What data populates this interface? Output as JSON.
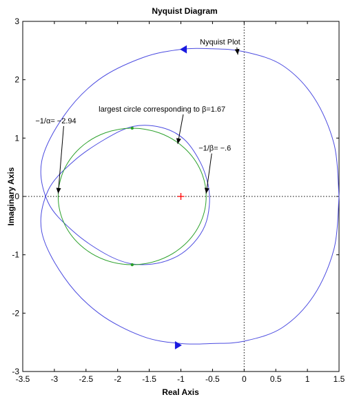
{
  "chart_data": {
    "type": "line",
    "title": "Nyquist Diagram",
    "xlabel": "Real Axis",
    "ylabel": "Imaginary Axis",
    "xlim": [
      -3.5,
      1.5
    ],
    "ylim": [
      -3,
      3
    ],
    "xticks": [
      -3.5,
      -3,
      -2.5,
      -2,
      -1.5,
      -1,
      -0.5,
      0,
      0.5,
      1,
      1.5
    ],
    "xtick_labels": [
      "-3.5",
      "-3",
      "-2.5",
      "-2",
      "-1.5",
      "-1",
      "-0.5",
      "0",
      "0.5",
      "1",
      "1.5"
    ],
    "yticks": [
      3,
      2,
      1,
      0,
      -1,
      -2,
      -3
    ],
    "ytick_labels": [
      "3",
      "2",
      "1",
      "0",
      "-1",
      "-2",
      "-3"
    ],
    "grid": false,
    "reference_lines": [
      {
        "orientation": "horizontal",
        "value": 0,
        "style": "dotted"
      },
      {
        "orientation": "vertical",
        "value": 0,
        "style": "dotted"
      }
    ],
    "critical_point": {
      "x": -1,
      "y": 0,
      "marker": "plus",
      "color": "#ff0000"
    },
    "series": [
      {
        "color": "#4a4ae0",
        "kind": "nyquist",
        "points": [
          [
            1.5,
            0
          ],
          [
            1.42,
            0.9
          ],
          [
            1.1,
            1.7
          ],
          [
            0.6,
            2.25
          ],
          [
            0,
            2.48
          ],
          [
            -0.5,
            2.53
          ],
          [
            -1.0,
            2.52
          ],
          [
            -1.6,
            2.38
          ],
          [
            -2.3,
            2.0
          ],
          [
            -2.85,
            1.38
          ],
          [
            -3.2,
            0.6
          ],
          [
            -3.1,
            -0.1
          ],
          [
            -2.7,
            -0.6
          ],
          [
            -2.2,
            -0.98
          ],
          [
            -1.8,
            -1.15
          ],
          [
            -1.4,
            -1.15
          ],
          [
            -1.05,
            -1.02
          ],
          [
            -0.8,
            -0.8
          ],
          [
            -0.62,
            -0.5
          ],
          [
            -0.55,
            -0.15
          ],
          [
            -0.57,
            0.2
          ],
          [
            -0.7,
            0.6
          ],
          [
            -0.95,
            0.98
          ],
          [
            -1.3,
            1.18
          ],
          [
            -1.75,
            1.2
          ],
          [
            -2.2,
            0.98
          ],
          [
            -2.7,
            0.6
          ],
          [
            -3.1,
            0.1
          ],
          [
            -3.2,
            -0.6
          ],
          [
            -2.85,
            -1.38
          ],
          [
            -2.3,
            -2.0
          ],
          [
            -1.6,
            -2.4
          ],
          [
            -1.0,
            -2.52
          ],
          [
            -0.5,
            -2.52
          ],
          [
            0,
            -2.48
          ],
          [
            0.6,
            -2.25
          ],
          [
            1.1,
            -1.7
          ],
          [
            1.42,
            -0.9
          ],
          [
            1.5,
            0
          ]
        ],
        "arrows": [
          {
            "x": -0.95,
            "y": 2.52,
            "direction": "left"
          },
          {
            "x": -1.05,
            "y": -2.55,
            "direction": "right"
          }
        ]
      },
      {
        "color": "#2aa02a",
        "kind": "circle",
        "center": [
          -1.77,
          0
        ],
        "radius": 1.17,
        "markers": [
          [
            -1.77,
            1.17
          ],
          [
            -1.77,
            -1.17
          ]
        ]
      }
    ],
    "annotations": [
      {
        "text": "Nyquist Plot",
        "x": -0.7,
        "y": 2.65,
        "arrow_to": [
          -0.1,
          2.43
        ]
      },
      {
        "text": "largest circle corresponding to β=1.67",
        "x": -2.3,
        "y": 1.5,
        "arrow_to": [
          -1.05,
          0.9
        ]
      },
      {
        "text": "−1/α= −2.94",
        "x": -3.3,
        "y": 1.3,
        "arrow_to": [
          -2.94,
          0.05
        ]
      },
      {
        "text": "−1/β= −.6",
        "x": -0.72,
        "y": 0.83,
        "arrow_to": [
          -0.6,
          0.05
        ]
      }
    ]
  }
}
